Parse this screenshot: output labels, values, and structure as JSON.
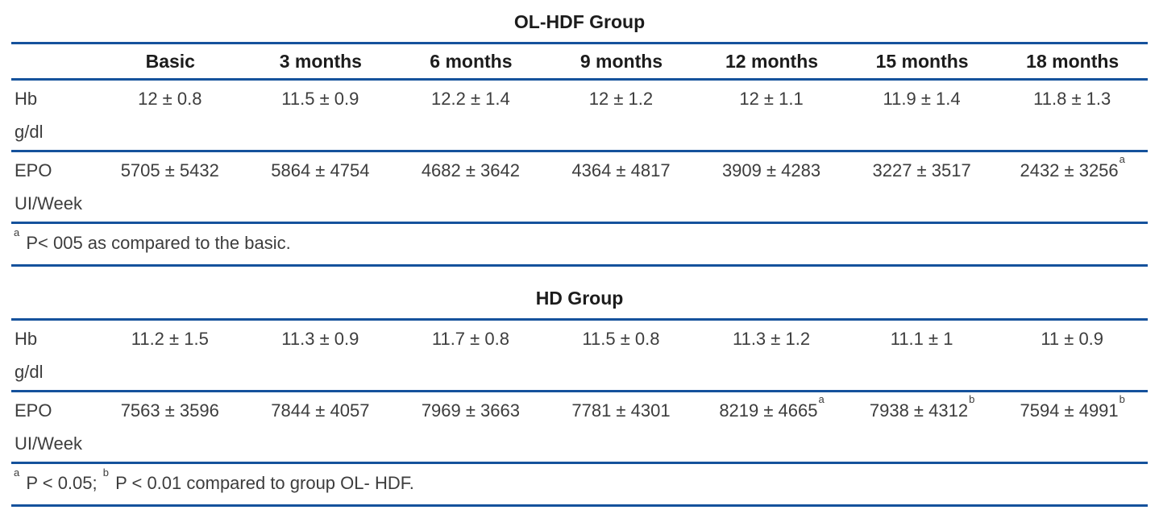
{
  "colors": {
    "rule_blue": "#15529C",
    "heading_text": "#1c1c1c",
    "body_text": "#3d3d3d"
  },
  "table_olhdf": {
    "title": "OL-HDF Group",
    "columns": [
      "Basic",
      "3 months",
      "6 months",
      "9 months",
      "12 months",
      "15 months",
      "18 months"
    ],
    "rows": [
      {
        "label": "Hb",
        "unit": "g/dl",
        "values": [
          "12 ± 0.8",
          "11.5 ± 0.9",
          "12.2 ± 1.4",
          "12 ± 1.2",
          "12 ± 1.1",
          "11.9 ± 1.4",
          "11.8 ± 1.3"
        ],
        "sups": [
          "",
          "",
          "",
          "",
          "",
          "",
          ""
        ]
      },
      {
        "label": "EPO",
        "unit": "UI/Week",
        "values": [
          "5705 ± 5432",
          "5864 ± 4754",
          "4682 ± 3642",
          "4364 ± 4817",
          "3909 ± 4283",
          "3227 ± 3517",
          "2432 ± 3256"
        ],
        "sups": [
          "",
          "",
          "",
          "",
          "",
          "",
          "a"
        ]
      }
    ],
    "footnote": {
      "sup": "a",
      "text": " P< 005 as compared to the basic."
    }
  },
  "table_hd": {
    "title": "HD Group",
    "rows": [
      {
        "label": "Hb",
        "unit": "g/dl",
        "values": [
          "11.2 ± 1.5",
          "11.3 ± 0.9",
          "11.7 ± 0.8",
          "11.5 ± 0.8",
          "11.3 ± 1.2",
          "11.1 ± 1",
          "11 ± 0.9"
        ],
        "sups": [
          "",
          "",
          "",
          "",
          "",
          "",
          ""
        ]
      },
      {
        "label": "EPO",
        "unit": "UI/Week",
        "values": [
          "7563 ± 3596",
          "7844 ± 4057",
          "7969 ± 3663",
          "7781 ± 4301",
          "8219 ± 4665",
          "7938 ± 4312",
          "7594 ± 4991"
        ],
        "sups": [
          "",
          "",
          "",
          "",
          "a",
          "b",
          "b"
        ]
      }
    ],
    "footnote": {
      "sup_a": "a",
      "text_a": " P < 0.05; ",
      "sup_b": "b",
      "text_b": " P < 0.01 compared to group OL- HDF."
    }
  }
}
